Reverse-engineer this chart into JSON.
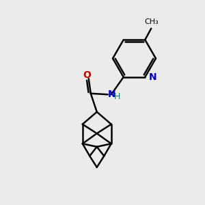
{
  "background_color": "#ebebeb",
  "bond_color": "#000000",
  "N_color": "#0000cc",
  "O_color": "#cc0000",
  "teal_color": "#008080",
  "line_width": 1.8,
  "figsize": [
    3.0,
    3.0
  ],
  "dpi": 100,
  "xlim": [
    0,
    10
  ],
  "ylim": [
    0,
    10
  ]
}
